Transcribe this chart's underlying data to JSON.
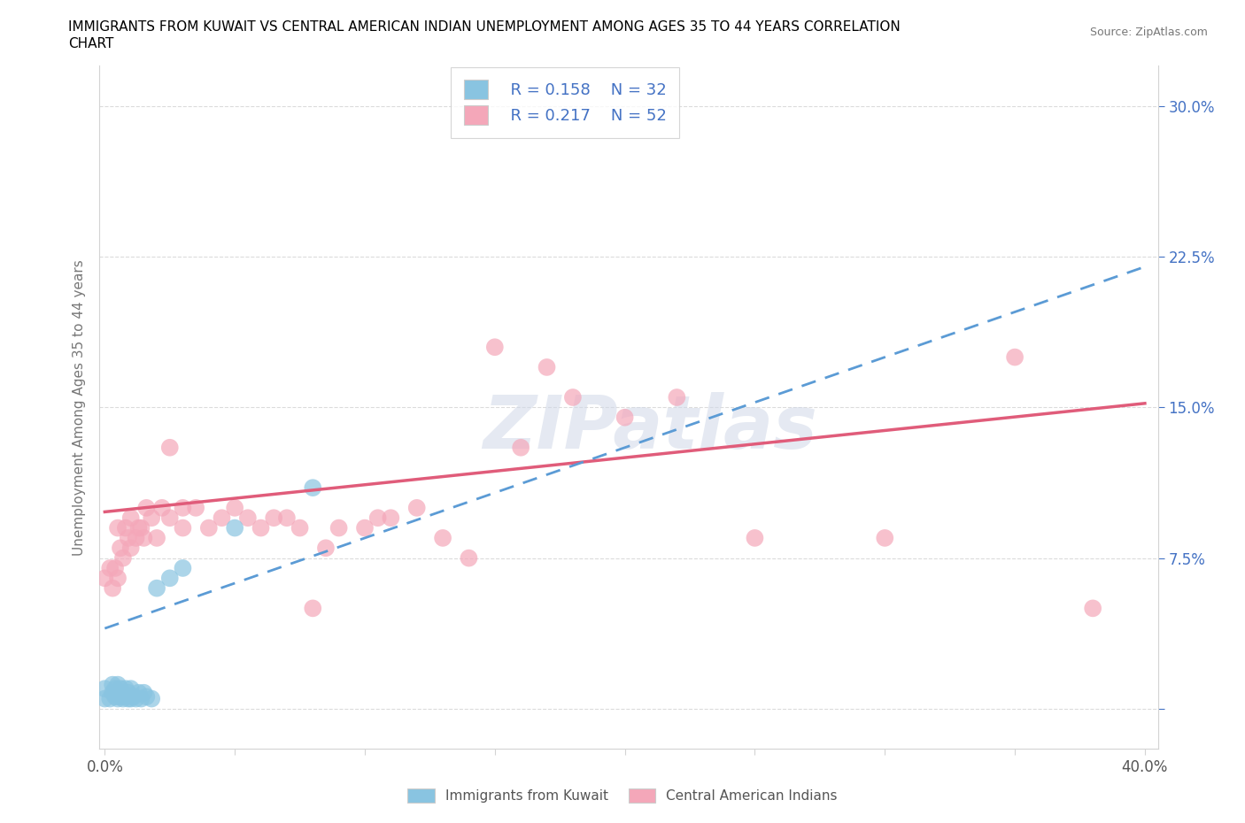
{
  "title_line1": "IMMIGRANTS FROM KUWAIT VS CENTRAL AMERICAN INDIAN UNEMPLOYMENT AMONG AGES 35 TO 44 YEARS CORRELATION",
  "title_line2": "CHART",
  "source_text": "Source: ZipAtlas.com",
  "ylabel": "Unemployment Among Ages 35 to 44 years",
  "xlim": [
    -0.002,
    0.405
  ],
  "ylim": [
    -0.02,
    0.32
  ],
  "xticks": [
    0.0,
    0.05,
    0.1,
    0.15,
    0.2,
    0.25,
    0.3,
    0.35,
    0.4
  ],
  "yticks_right": [
    0.0,
    0.075,
    0.15,
    0.225,
    0.3
  ],
  "ytick_labels_right": [
    "",
    "7.5%",
    "15.0%",
    "22.5%",
    "30.0%"
  ],
  "legend_r1": "R = 0.158",
  "legend_n1": "N = 32",
  "legend_r2": "R = 0.217",
  "legend_n2": "N = 52",
  "color_kuwait": "#89c4e1",
  "color_central": "#f4a7b9",
  "color_kuwait_line": "#5b9bd5",
  "color_central_line": "#e05c7a",
  "background_color": "#ffffff",
  "watermark": "ZIPatlas",
  "kuwait_x": [
    0.0,
    0.0,
    0.002,
    0.003,
    0.003,
    0.004,
    0.004,
    0.005,
    0.005,
    0.005,
    0.006,
    0.006,
    0.007,
    0.007,
    0.008,
    0.008,
    0.009,
    0.009,
    0.01,
    0.01,
    0.011,
    0.012,
    0.013,
    0.014,
    0.015,
    0.016,
    0.018,
    0.02,
    0.025,
    0.03,
    0.05,
    0.08
  ],
  "kuwait_y": [
    0.005,
    0.01,
    0.005,
    0.008,
    0.012,
    0.006,
    0.01,
    0.005,
    0.008,
    0.012,
    0.006,
    0.01,
    0.005,
    0.008,
    0.006,
    0.01,
    0.005,
    0.008,
    0.005,
    0.01,
    0.006,
    0.005,
    0.008,
    0.005,
    0.008,
    0.006,
    0.005,
    0.06,
    0.065,
    0.07,
    0.09,
    0.11
  ],
  "central_x": [
    0.0,
    0.002,
    0.003,
    0.004,
    0.005,
    0.005,
    0.006,
    0.007,
    0.008,
    0.009,
    0.01,
    0.01,
    0.012,
    0.013,
    0.014,
    0.015,
    0.016,
    0.018,
    0.02,
    0.022,
    0.025,
    0.025,
    0.03,
    0.03,
    0.035,
    0.04,
    0.045,
    0.05,
    0.055,
    0.06,
    0.065,
    0.07,
    0.075,
    0.08,
    0.085,
    0.09,
    0.1,
    0.105,
    0.11,
    0.12,
    0.13,
    0.14,
    0.15,
    0.16,
    0.17,
    0.18,
    0.2,
    0.22,
    0.25,
    0.3,
    0.35,
    0.38
  ],
  "central_y": [
    0.065,
    0.07,
    0.06,
    0.07,
    0.065,
    0.09,
    0.08,
    0.075,
    0.09,
    0.085,
    0.08,
    0.095,
    0.085,
    0.09,
    0.09,
    0.085,
    0.1,
    0.095,
    0.085,
    0.1,
    0.095,
    0.13,
    0.09,
    0.1,
    0.1,
    0.09,
    0.095,
    0.1,
    0.095,
    0.09,
    0.095,
    0.095,
    0.09,
    0.05,
    0.08,
    0.09,
    0.09,
    0.095,
    0.095,
    0.1,
    0.085,
    0.075,
    0.18,
    0.13,
    0.17,
    0.155,
    0.145,
    0.155,
    0.085,
    0.085,
    0.175,
    0.05
  ]
}
